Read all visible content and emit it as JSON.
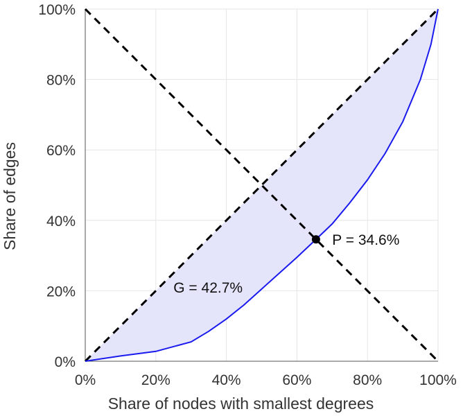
{
  "chart_data": {
    "type": "line",
    "xlabel": "Share of nodes with smallest degrees",
    "ylabel": "Share of edges",
    "xlim": [
      0,
      100
    ],
    "ylim": [
      0,
      100
    ],
    "x_ticks": [
      "0%",
      "20%",
      "40%",
      "60%",
      "80%",
      "100%"
    ],
    "y_ticks": [
      "0%",
      "20%",
      "40%",
      "60%",
      "80%",
      "100%"
    ],
    "grid": true,
    "series": [
      {
        "type": "lorenz-curve",
        "x": [
          0,
          10,
          20,
          30,
          35,
          40,
          45,
          50,
          55,
          60,
          65.4,
          70,
          75,
          80,
          85,
          90,
          95,
          98,
          100
        ],
        "y": [
          0,
          1.5,
          2.8,
          5.5,
          8.5,
          12,
          16,
          20.5,
          25,
          29.5,
          34.6,
          39,
          45,
          51.5,
          59,
          68,
          80,
          90,
          100
        ]
      },
      {
        "type": "equality-diagonal",
        "x": [
          0,
          100
        ],
        "y": [
          0,
          100
        ]
      },
      {
        "type": "anti-diagonal",
        "x": [
          0,
          100
        ],
        "y": [
          100,
          0
        ]
      }
    ],
    "point": {
      "x": 65.4,
      "y": 34.6
    },
    "annotations": {
      "gini": {
        "text": "G = 42.7%",
        "x": 25,
        "y": 19.5
      },
      "pareto": {
        "text": "P = 34.6%",
        "x": 70,
        "y": 34.6
      }
    },
    "colors": {
      "curve": "#1a1aee",
      "fill": "#e4e4fb",
      "dashed": "#000000",
      "point": "#000000"
    }
  }
}
